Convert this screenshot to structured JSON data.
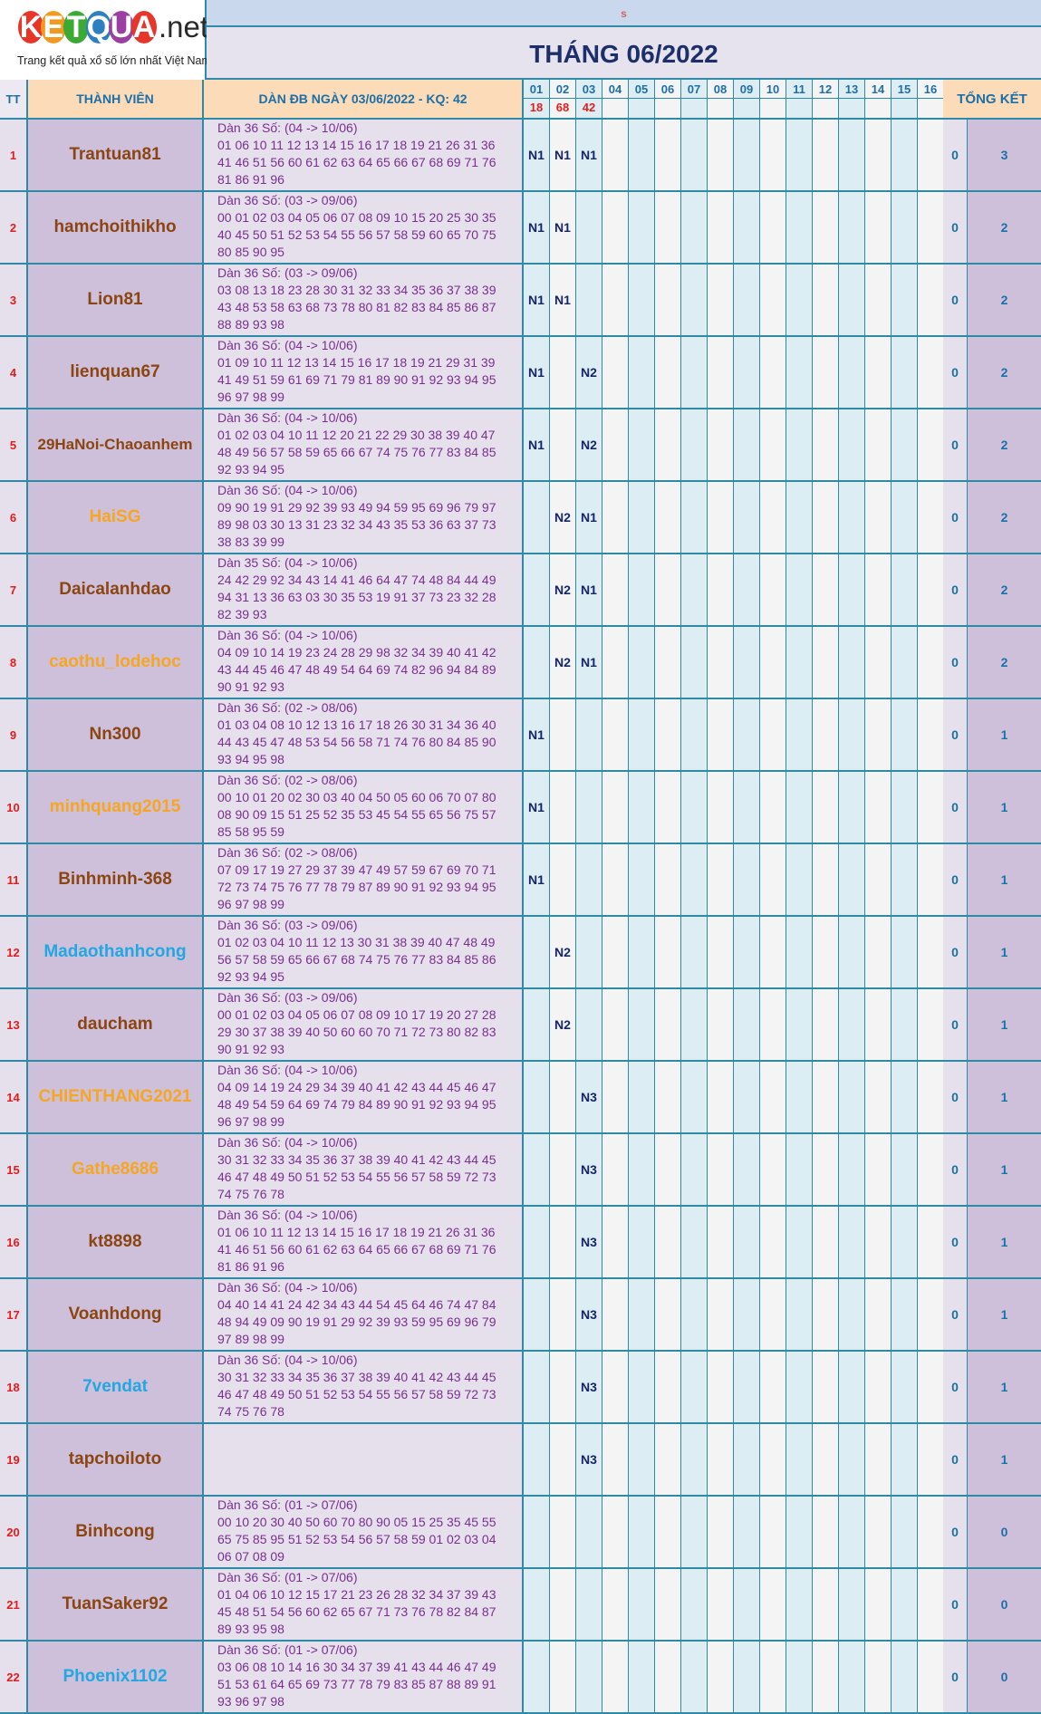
{
  "logo": {
    "letters": [
      {
        "ch": "K",
        "color": "#e8352a"
      },
      {
        "ch": "E",
        "color": "#f29a1f"
      },
      {
        "ch": "T",
        "color": "#3aaa35"
      },
      {
        "ch": "Q",
        "color": "#2d7fc1"
      },
      {
        "ch": "U",
        "color": "#9b3fa0"
      },
      {
        "ch": "A",
        "color": "#e8352a"
      }
    ],
    "suffix": ".net",
    "tagline": "Trang kết quả xổ số lớn nhất Việt Nam"
  },
  "top_label": "s",
  "title": "THÁNG 06/2022",
  "header": {
    "tt": "TT",
    "member": "THÀNH VIÊN",
    "dan": "DÀN ĐB NGÀY 03/06/2022 - KQ: 42",
    "total": "TỔNG KẾT",
    "days": [
      "01",
      "02",
      "03",
      "04",
      "05",
      "06",
      "07",
      "08",
      "09",
      "10",
      "11",
      "12",
      "13",
      "14",
      "15",
      "16"
    ],
    "results": [
      "18",
      "68",
      "42",
      "",
      "",
      "",
      "",
      "",
      "",
      "",
      "",
      "",
      "",
      "",
      "",
      ""
    ]
  },
  "colors": {
    "brown": "#8b4513",
    "orange": "#f5a623",
    "blue": "#22a7e0"
  },
  "rows": [
    {
      "tt": "1",
      "name": "Trantuan81",
      "color": "brown",
      "dan": [
        "Dàn 36 Số: (04 -> 10/06)",
        "01 06 10 11 12 13 14 15 16 17 18 19 21 26 31 36",
        "41 46 51 56 60 61 62 63 64 65 66 67 68 69 71 76",
        "81 86 91 96"
      ],
      "days": [
        "N1",
        "N1",
        "N1"
      ],
      "r0": "0",
      "r1": "3"
    },
    {
      "tt": "2",
      "name": "hamchoithikho",
      "color": "brown",
      "dan": [
        "Dàn 36 Số: (03 -> 09/06)",
        "00 01 02 03 04 05 06 07 08 09 10 15 20 25 30 35",
        "40 45 50 51 52 53 54 55 56 57 58 59 60 65 70 75",
        "80 85 90 95"
      ],
      "days": [
        "N1",
        "N1",
        ""
      ],
      "r0": "0",
      "r1": "2"
    },
    {
      "tt": "3",
      "name": "Lion81",
      "color": "brown",
      "dan": [
        "Dàn 36 Số: (03 -> 09/06)",
        "03 08 13 18 23 28 30 31 32 33 34 35 36 37 38 39",
        "43 48 53 58 63 68 73 78 80 81 82 83 84 85 86 87",
        "88 89 93 98"
      ],
      "days": [
        "N1",
        "N1",
        ""
      ],
      "r0": "0",
      "r1": "2"
    },
    {
      "tt": "4",
      "name": "lienquan67",
      "color": "brown",
      "dan": [
        "Dàn 36 Số: (04 -> 10/06)",
        "01 09 10 11 12 13 14 15 16 17 18 19 21 29 31 39",
        "41 49 51 59 61 69 71 79 81 89 90 91 92 93 94 95",
        "96 97 98 99"
      ],
      "days": [
        "N1",
        "",
        "N2"
      ],
      "r0": "0",
      "r1": "2"
    },
    {
      "tt": "5",
      "name": "29HaNoi-Chaoanhem",
      "color": "brown",
      "dan": [
        "Dàn 36 Số: (04 -> 10/06)",
        "01 02 03 04 10 11 12 20 21 22 29 30 38 39 40 47",
        "48 49 56 57 58 59 65 66 67 74 75 76 77 83 84 85",
        "92 93 94 95"
      ],
      "days": [
        "N1",
        "",
        "N2"
      ],
      "r0": "0",
      "r1": "2"
    },
    {
      "tt": "6",
      "name": "HaiSG",
      "color": "orange",
      "dan": [
        "Dàn 36 Số: (04 -> 10/06)",
        "09 90 19 91 29 92 39 93 49 94 59 95 69 96 79 97",
        "89 98 03 30 13 31 23 32 34 43 35 53 36 63 37 73",
        "38 83 39 99"
      ],
      "days": [
        "",
        "N2",
        "N1"
      ],
      "r0": "0",
      "r1": "2"
    },
    {
      "tt": "7",
      "name": "Daicalanhdao",
      "color": "brown",
      "dan": [
        "Dàn 35 Số: (04 -> 10/06)",
        "24 42 29 92 34 43 14 41 46 64 47 74 48 84 44 49",
        "94 31 13 36 63 03 30 35 53 19 91 37 73 23 32 28",
        "82 39 93"
      ],
      "days": [
        "",
        "N2",
        "N1"
      ],
      "r0": "0",
      "r1": "2"
    },
    {
      "tt": "8",
      "name": "caothu_lodehoc",
      "color": "orange",
      "dan": [
        "Dàn 36 Số: (04 -> 10/06)",
        "04 09 10 14 19 23 24 28 29 98 32 34 39 40 41 42",
        "43 44 45 46 47 48 49 54 64 69 74 82 96 94 84 89",
        "90 91 92 93"
      ],
      "days": [
        "",
        "N2",
        "N1"
      ],
      "r0": "0",
      "r1": "2"
    },
    {
      "tt": "9",
      "name": "Nn300",
      "color": "brown",
      "dan": [
        "Dàn 36 Số: (02 -> 08/06)",
        "01 03 04 08 10 12 13 16 17 18 26 30 31 34 36 40",
        "44 43 45 47 48 53 54 56 58 71 74 76 80 84 85 90",
        "93 94 95 98"
      ],
      "days": [
        "N1",
        "",
        ""
      ],
      "r0": "0",
      "r1": "1"
    },
    {
      "tt": "10",
      "name": "minhquang2015",
      "color": "orange",
      "dan": [
        "Dàn 36 Số: (02 -> 08/06)",
        "00 10 01 20 02 30 03 40 04 50 05 60 06 70 07 80",
        "08 90 09 15 51 25 52 35 53 45 54 55 65 56 75 57",
        "85 58 95 59"
      ],
      "days": [
        "N1",
        "",
        ""
      ],
      "r0": "0",
      "r1": "1"
    },
    {
      "tt": "11",
      "name": "Binhminh-368",
      "color": "brown",
      "dan": [
        "Dàn 36 Số: (02 -> 08/06)",
        "07 09 17 19 27 29 37 39 47 49 57 59 67 69 70 71",
        "72 73 74 75 76 77 78 79 87 89 90 91 92 93 94 95",
        "96 97 98 99"
      ],
      "days": [
        "N1",
        "",
        ""
      ],
      "r0": "0",
      "r1": "1"
    },
    {
      "tt": "12",
      "name": "Madaothanhcong",
      "color": "blue",
      "dan": [
        "Dàn 36 Số: (03 -> 09/06)",
        "01 02 03 04 10 11 12 13 30 31 38 39 40 47 48 49",
        "56 57 58 59 65 66 67 68 74 75 76 77 83 84 85 86",
        "92 93 94 95"
      ],
      "days": [
        "",
        "N2",
        ""
      ],
      "r0": "0",
      "r1": "1"
    },
    {
      "tt": "13",
      "name": "daucham",
      "color": "brown",
      "dan": [
        "Dàn 36 Số: (03 -> 09/06)",
        "00 01 02 03 04 05 06 07 08 09 10 17 19 20 27 28",
        "29 30 37 38 39 40 50 60 60 70 71 72 73 80 82 83",
        "90 91 92 93"
      ],
      "days": [
        "",
        "N2",
        ""
      ],
      "r0": "0",
      "r1": "1"
    },
    {
      "tt": "14",
      "name": "CHIENTHANG2021",
      "color": "orange",
      "dan": [
        "Dàn 36 Số: (04 -> 10/06)",
        "04 09 14 19 24 29 34 39 40 41 42 43 44 45 46 47",
        "48 49 54 59 64 69 74 79 84 89 90 91 92 93 94 95",
        "96 97 98 99"
      ],
      "days": [
        "",
        "",
        "N3"
      ],
      "r0": "0",
      "r1": "1"
    },
    {
      "tt": "15",
      "name": "Gathe8686",
      "color": "orange",
      "dan": [
        "Dàn 36 Số: (04 -> 10/06)",
        "30 31 32 33 34 35 36 37 38 39 40 41 42 43 44 45",
        "46 47 48 49 50 51 52 53 54 55 56 57 58 59 72 73",
        "74 75 76 78"
      ],
      "days": [
        "",
        "",
        "N3"
      ],
      "r0": "0",
      "r1": "1"
    },
    {
      "tt": "16",
      "name": "kt8898",
      "color": "brown",
      "dan": [
        "Dàn 36 Số: (04 -> 10/06)",
        "01 06 10 11 12 13 14 15 16 17 18 19 21 26 31 36",
        "41 46 51 56 60 61 62 63 64 65 66 67 68 69 71 76",
        "81 86 91 96"
      ],
      "days": [
        "",
        "",
        "N3"
      ],
      "r0": "0",
      "r1": "1"
    },
    {
      "tt": "17",
      "name": "Voanhdong",
      "color": "brown",
      "dan": [
        "Dàn 36 Số: (04 -> 10/06)",
        "04 40 14 41 24 42 34 43 44 54 45 64 46 74 47 84",
        "48 94 49 09 90 19 91 29 92 39 93 59 95 69 96 79",
        "97 89 98 99"
      ],
      "days": [
        "",
        "",
        "N3"
      ],
      "r0": "0",
      "r1": "1"
    },
    {
      "tt": "18",
      "name": "7vendat",
      "color": "blue",
      "dan": [
        "Dàn 36 Số: (04 -> 10/06)",
        "30 31 32 33 34 35 36 37 38 39 40 41 42 43 44 45",
        "46 47 48 49 50 51 52 53 54 55 56 57 58 59 72 73",
        "74 75 76 78"
      ],
      "days": [
        "",
        "",
        "N3"
      ],
      "r0": "0",
      "r1": "1"
    },
    {
      "tt": "19",
      "name": "tapchoiloto",
      "color": "brown",
      "dan": [],
      "days": [
        "",
        "",
        "N3"
      ],
      "r0": "0",
      "r1": "1"
    },
    {
      "tt": "20",
      "name": "Binhcong",
      "color": "brown",
      "dan": [
        "Dàn 36 Số: (01 -> 07/06)",
        "00 10 20 30 40 50 60 70 80 90 05 15 25 35 45 55",
        "65 75 85 95 51 52 53 54 56 57 58 59 01 02 03 04",
        "06 07 08 09"
      ],
      "days": [
        "",
        "",
        ""
      ],
      "r0": "0",
      "r1": "0"
    },
    {
      "tt": "21",
      "name": "TuanSaker92",
      "color": "brown",
      "dan": [
        "Dàn 36 Số: (01 -> 07/06)",
        "01 04 06 10 12 15 17 21 23 26 28 32 34 37 39 43",
        "45 48 51 54 56 60 62 65 67 71 73 76 78 82 84 87",
        "89 93 95 98"
      ],
      "days": [
        "",
        "",
        ""
      ],
      "r0": "0",
      "r1": "0"
    },
    {
      "tt": "22",
      "name": "Phoenix1102",
      "color": "blue",
      "dan": [
        "Dàn 36 Số: (01 -> 07/06)",
        "03 06 08 10 14 16 30 34 37 39 41 43 44 46 47 49",
        "51 53 61 64 65 69 73 77 78 79 83 85 87 88 89 91",
        "93 96 97 98"
      ],
      "days": [
        "",
        "",
        ""
      ],
      "r0": "0",
      "r1": "0"
    }
  ]
}
